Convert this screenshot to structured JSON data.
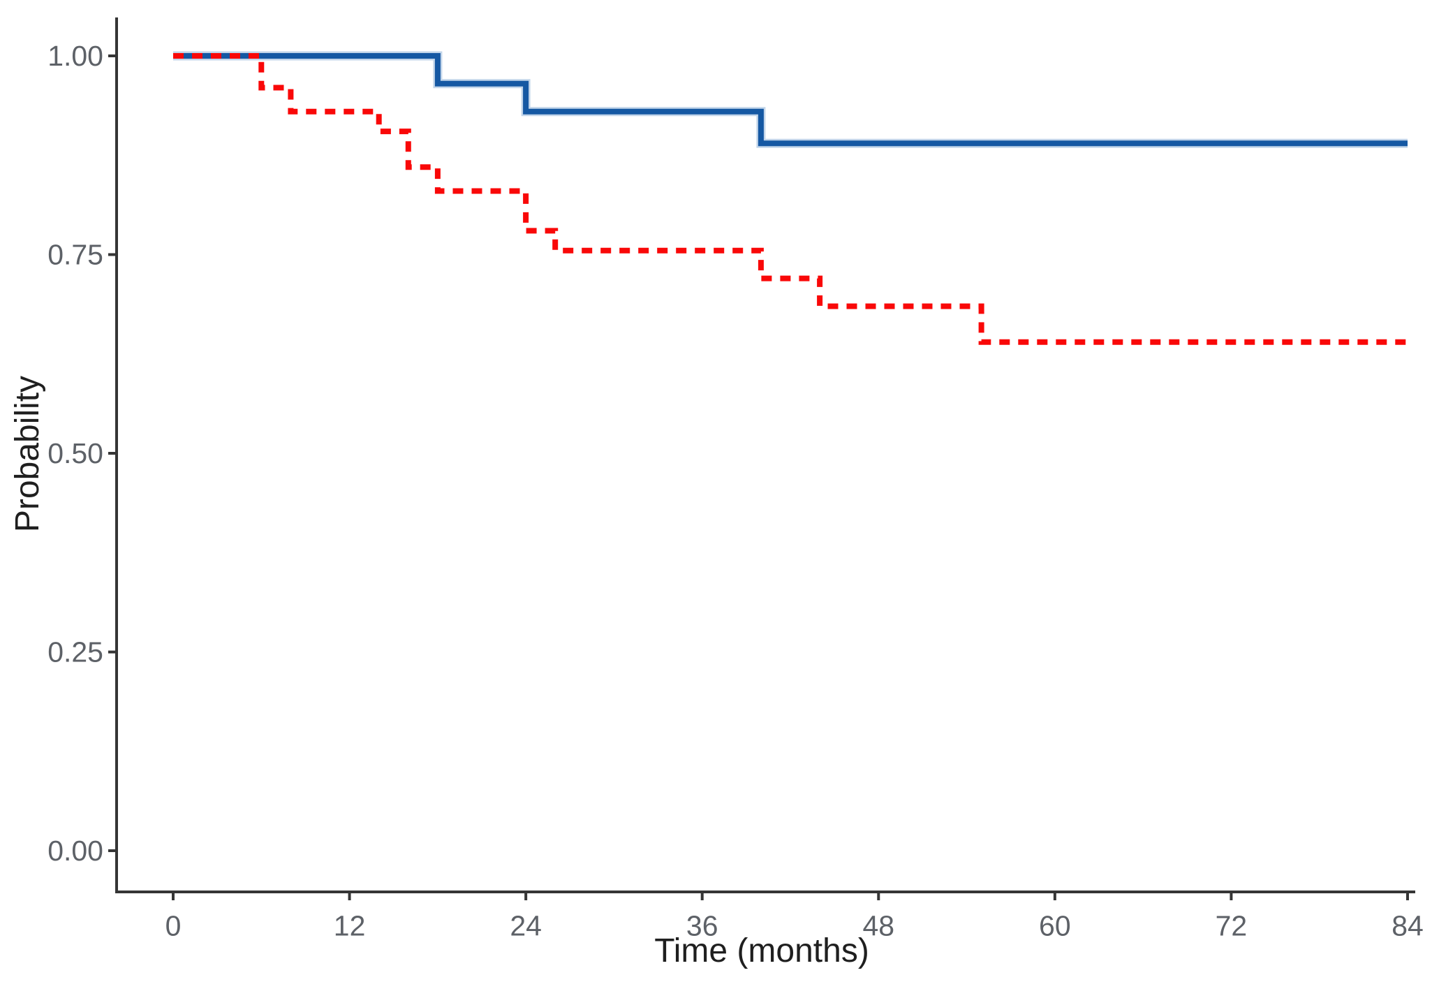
{
  "chart_data": {
    "type": "line",
    "subtype": "kaplan-meier-step-curves",
    "title": "",
    "xlabel": "Time (months)",
    "ylabel": "Probability",
    "xlim": [
      0,
      84
    ],
    "ylim": [
      0.0,
      1.0
    ],
    "grid": "off",
    "legend": "none",
    "background_color": "#ffffff",
    "axis_line_color": "#353535",
    "tick_color": "#353535",
    "tick_label_color": "#5d6167",
    "axis_title_color": "#1f1f1f",
    "x_ticks": [
      {
        "value": 0,
        "label": "0"
      },
      {
        "value": 12,
        "label": "12"
      },
      {
        "value": 24,
        "label": "24"
      },
      {
        "value": 36,
        "label": "36"
      },
      {
        "value": 48,
        "label": "48"
      },
      {
        "value": 60,
        "label": "60"
      },
      {
        "value": 72,
        "label": "72"
      },
      {
        "value": 84,
        "label": "84"
      }
    ],
    "y_ticks": [
      {
        "value": 0.0,
        "label": "0.00"
      },
      {
        "value": 0.25,
        "label": "0.25"
      },
      {
        "value": 0.5,
        "label": "0.50"
      },
      {
        "value": 0.75,
        "label": "0.75"
      },
      {
        "value": 1.0,
        "label": "1.00"
      }
    ],
    "series": [
      {
        "name": "solid-blue-survival-curve",
        "color": "#1558A3",
        "halo_color": "#8FB2D8",
        "line_style": "solid",
        "points": [
          [
            0,
            1.0
          ],
          [
            18,
            1.0
          ],
          [
            18,
            0.965
          ],
          [
            24,
            0.965
          ],
          [
            24,
            0.93
          ],
          [
            40,
            0.93
          ],
          [
            40,
            0.89
          ],
          [
            84,
            0.89
          ]
        ]
      },
      {
        "name": "dashed-red-survival-curve",
        "color": "#F90808",
        "halo_color": "",
        "line_style": "dashed",
        "points": [
          [
            0,
            1.0
          ],
          [
            6,
            1.0
          ],
          [
            6,
            0.96
          ],
          [
            8,
            0.96
          ],
          [
            8,
            0.93
          ],
          [
            14,
            0.93
          ],
          [
            14,
            0.905
          ],
          [
            16,
            0.905
          ],
          [
            16,
            0.86
          ],
          [
            18,
            0.86
          ],
          [
            18,
            0.83
          ],
          [
            24,
            0.83
          ],
          [
            24,
            0.78
          ],
          [
            26,
            0.78
          ],
          [
            26,
            0.755
          ],
          [
            40,
            0.755
          ],
          [
            40,
            0.72
          ],
          [
            44,
            0.72
          ],
          [
            44,
            0.685
          ],
          [
            55,
            0.685
          ],
          [
            55,
            0.64
          ],
          [
            84,
            0.64
          ]
        ]
      }
    ]
  }
}
